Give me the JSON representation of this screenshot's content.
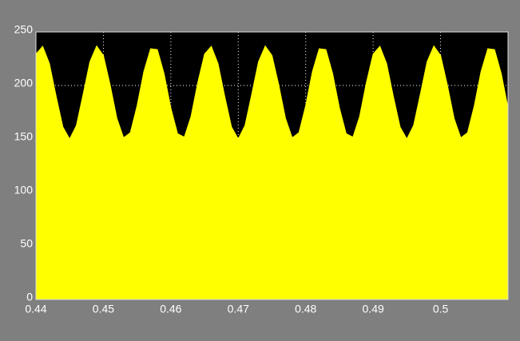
{
  "chart_data": {
    "type": "area",
    "x": [
      0.44,
      0.441,
      0.442,
      0.443,
      0.444,
      0.445,
      0.446,
      0.447,
      0.448,
      0.449,
      0.45,
      0.451,
      0.452,
      0.453,
      0.454,
      0.455,
      0.456,
      0.457,
      0.458,
      0.459,
      0.46,
      0.461,
      0.462,
      0.463,
      0.464,
      0.465,
      0.466,
      0.467,
      0.468,
      0.469,
      0.47,
      0.471,
      0.472,
      0.473,
      0.474,
      0.475,
      0.476,
      0.477,
      0.478,
      0.479,
      0.48,
      0.481,
      0.482,
      0.483,
      0.484,
      0.485,
      0.486,
      0.487,
      0.488,
      0.489,
      0.49,
      0.491,
      0.492,
      0.493,
      0.494,
      0.495,
      0.496,
      0.497,
      0.498,
      0.499,
      0.5,
      0.501,
      0.502,
      0.503,
      0.504,
      0.505,
      0.506,
      0.507,
      0.508,
      0.509,
      0.51
    ],
    "series": [
      {
        "color": "#ffff00",
        "values": [
          229.3,
          236.5,
          220.4,
          189.7,
          161.1,
          150.0,
          162.6,
          191.8,
          222.1,
          236.8,
          228.0,
          200.6,
          169.3,
          151.1,
          155.9,
          181.1,
          213.0,
          234.3,
          233.5,
          211.0,
          179.0,
          154.9,
          151.7,
          171.1,
          202.7,
          229.3,
          236.5,
          220.4,
          189.7,
          161.1,
          150.0,
          162.6,
          191.8,
          222.1,
          236.8,
          228.0,
          200.6,
          169.3,
          151.1,
          155.9,
          181.1,
          213.0,
          234.3,
          233.5,
          211.0,
          179.0,
          154.9,
          151.7,
          171.1,
          202.7,
          229.3,
          236.5,
          220.4,
          189.7,
          161.1,
          150.0,
          162.6,
          191.8,
          222.1,
          236.8,
          228.0,
          200.6,
          169.3,
          151.1,
          155.9,
          181.1,
          213.0,
          234.3,
          233.5,
          211.0,
          179.0
        ]
      }
    ],
    "xlim": [
      0.44,
      0.51
    ],
    "xticks": [
      0.44,
      0.45,
      0.46,
      0.47,
      0.48,
      0.49,
      0.5
    ],
    "ylim": [
      0,
      250
    ],
    "yticks": [
      0,
      50,
      100,
      150,
      200,
      250
    ],
    "grid": true
  }
}
